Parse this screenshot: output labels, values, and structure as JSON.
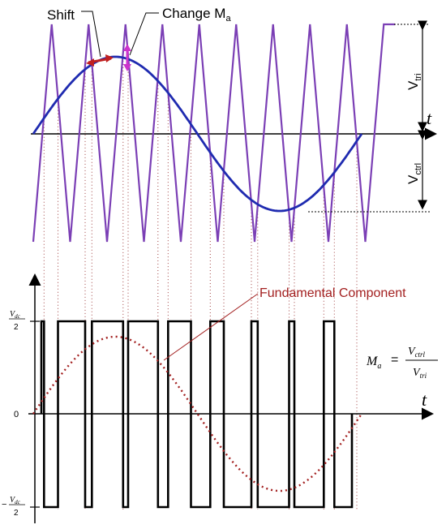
{
  "labels": {
    "shift": "Shift",
    "change_ma": "Change M",
    "change_ma_sub": "a",
    "t_top": "t",
    "t_bottom": "t",
    "v_tri": "V",
    "v_tri_sub": "tri",
    "v_ctrl": "V",
    "v_ctrl_sub": "ctrl",
    "fundamental": "Fundamental Component",
    "zero": "0",
    "vdc": "V",
    "vdc_sub": "dc",
    "two": "2",
    "minus": "−",
    "formula_m": "M",
    "formula_m_sub": "a",
    "formula_eq": "=",
    "formula_num": "V",
    "formula_num_sub": "ctrl",
    "formula_den": "V",
    "formula_den_sub": "tri"
  },
  "colors": {
    "triangle": "#7b3fb5",
    "sine": "#1f2bb0",
    "fundamental": "#a32020",
    "shift_arrow": "#c02020",
    "change_arrow": "#cc33cc",
    "dotted_link": "#a04040",
    "axis": "#000000"
  },
  "chart_data": {
    "type": "line",
    "triangle_periods": 9.5,
    "carrier_cycles_shown": 10,
    "control_wave_cycles": 1,
    "modulation_index": 0.74,
    "pwm_levels": [
      "Vdc/2",
      "-Vdc/2"
    ]
  }
}
